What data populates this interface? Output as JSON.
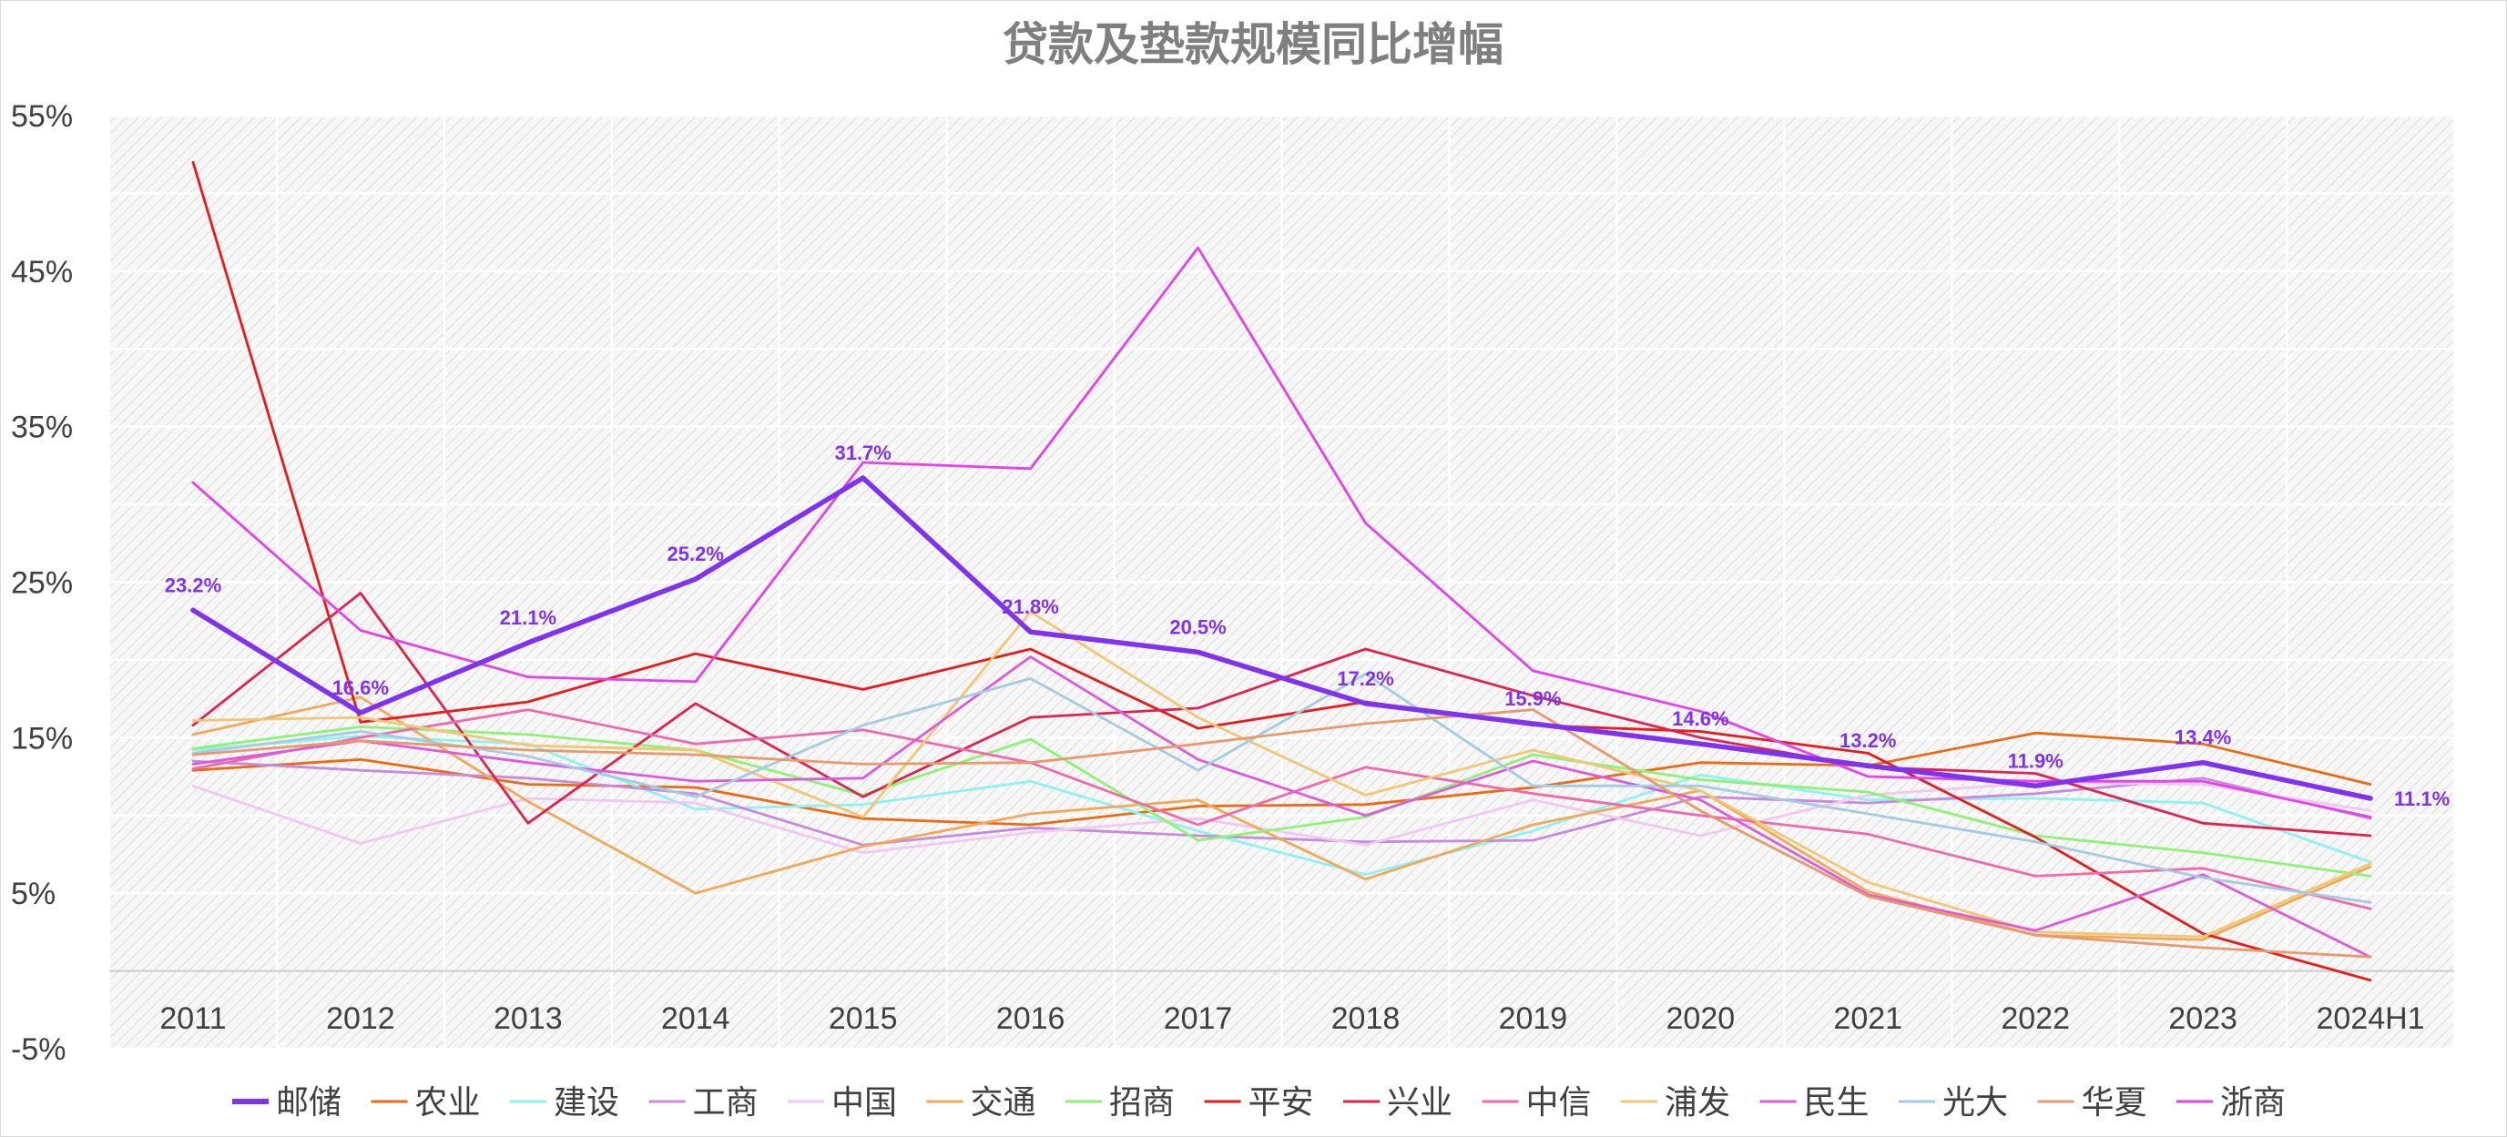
{
  "chart_data": {
    "type": "line",
    "title": "贷款及垫款规模同比增幅",
    "xlabel": "",
    "ylabel": "",
    "categories": [
      "2011",
      "2012",
      "2013",
      "2014",
      "2015",
      "2016",
      "2017",
      "2018",
      "2019",
      "2020",
      "2021",
      "2022",
      "2023",
      "2024H1"
    ],
    "y_ticks": [
      "55%",
      "45%",
      "35%",
      "25%",
      "15%",
      "5%",
      "-5%"
    ],
    "ylim": [
      -5,
      55
    ],
    "y_unit": "%",
    "grid": true,
    "legend_position": "bottom",
    "series": [
      {
        "name": "邮储",
        "color": "#8033ee",
        "bold": true,
        "values": [
          23.2,
          16.6,
          21.1,
          25.2,
          31.7,
          21.8,
          20.5,
          17.2,
          15.9,
          14.6,
          13.2,
          11.9,
          13.4,
          11.1
        ],
        "labels": [
          "23.2%",
          "16.6%",
          "21.1%",
          "25.2%",
          "31.7%",
          "21.8%",
          "20.5%",
          "17.2%",
          "15.9%",
          "14.6%",
          "13.2%",
          "11.9%",
          "13.4%",
          "11.1%"
        ]
      },
      {
        "name": "农业",
        "color": "#ee6a12",
        "values": [
          12.9,
          13.6,
          12.0,
          11.8,
          9.8,
          9.4,
          10.6,
          10.7,
          11.8,
          13.4,
          13.2,
          15.3,
          14.6,
          12.0
        ]
      },
      {
        "name": "建设",
        "color": "#8ef2f2",
        "values": [
          14.2,
          15.1,
          14.6,
          10.4,
          10.7,
          12.2,
          9.0,
          6.2,
          9.0,
          12.6,
          11.0,
          11.1,
          10.8,
          7.0
        ]
      },
      {
        "name": "工商",
        "color": "#c78bdb",
        "values": [
          13.5,
          12.9,
          12.4,
          11.4,
          8.1,
          9.2,
          8.7,
          8.3,
          8.4,
          11.2,
          10.8,
          11.4,
          12.4,
          9.8
        ]
      },
      {
        "name": "中国",
        "color": "#f0c8f2",
        "values": [
          11.9,
          8.2,
          11.1,
          10.8,
          7.6,
          8.9,
          9.8,
          8.1,
          11.0,
          8.7,
          11.3,
          12.1,
          12.0,
          10.3
        ]
      },
      {
        "name": "交通",
        "color": "#f2a859",
        "values": [
          15.2,
          17.6,
          10.9,
          5.0,
          8.0,
          10.1,
          11.0,
          5.9,
          9.4,
          11.6,
          5.1,
          2.3,
          2.0,
          6.7
        ]
      },
      {
        "name": "招商",
        "color": "#8ef275",
        "values": [
          14.3,
          15.7,
          15.2,
          14.2,
          11.3,
          14.9,
          8.4,
          9.9,
          13.9,
          12.3,
          11.5,
          8.7,
          7.6,
          6.1
        ]
      },
      {
        "name": "平安",
        "color": "#ea1a1a",
        "values": [
          52.0,
          16.0,
          17.3,
          20.4,
          18.1,
          20.7,
          15.6,
          17.3,
          15.8,
          15.4,
          14.0,
          8.6,
          2.4,
          -0.6
        ]
      },
      {
        "name": "兴业",
        "color": "#e02250",
        "values": [
          15.8,
          24.3,
          9.5,
          17.2,
          11.2,
          16.3,
          16.9,
          20.7,
          17.7,
          15.0,
          13.1,
          12.7,
          9.5,
          8.7
        ]
      },
      {
        "name": "中信",
        "color": "#f06aaa",
        "values": [
          13.0,
          15.0,
          16.8,
          14.6,
          15.5,
          13.4,
          9.4,
          13.1,
          11.4,
          10.0,
          8.8,
          6.1,
          6.6,
          4.0
        ]
      },
      {
        "name": "浦发",
        "color": "#f2c774",
        "values": [
          16.1,
          16.3,
          14.5,
          14.2,
          9.9,
          23.1,
          16.3,
          11.3,
          14.2,
          11.6,
          5.7,
          2.5,
          2.2,
          6.9
        ]
      },
      {
        "name": "民生",
        "color": "#dd5ada",
        "values": [
          13.3,
          14.8,
          13.4,
          12.2,
          12.4,
          20.2,
          13.6,
          10.0,
          13.5,
          11.0,
          4.9,
          2.6,
          6.2,
          0.9
        ]
      },
      {
        "name": "光大",
        "color": "#a5cbe3",
        "values": [
          14.0,
          15.4,
          13.8,
          11.2,
          15.8,
          18.8,
          12.9,
          19.1,
          11.9,
          11.9,
          10.1,
          8.3,
          6.0,
          4.4
        ]
      },
      {
        "name": "华夏",
        "color": "#e69a6e",
        "values": [
          13.9,
          14.8,
          14.2,
          13.9,
          13.3,
          13.4,
          14.6,
          15.9,
          16.8,
          10.3,
          4.8,
          2.3,
          1.5,
          0.9
        ]
      },
      {
        "name": "浙商",
        "color": "#e442ea",
        "values": [
          31.4,
          21.9,
          18.9,
          18.6,
          32.7,
          32.3,
          46.5,
          28.8,
          19.3,
          16.7,
          12.5,
          12.2,
          12.2,
          9.9
        ]
      }
    ]
  }
}
